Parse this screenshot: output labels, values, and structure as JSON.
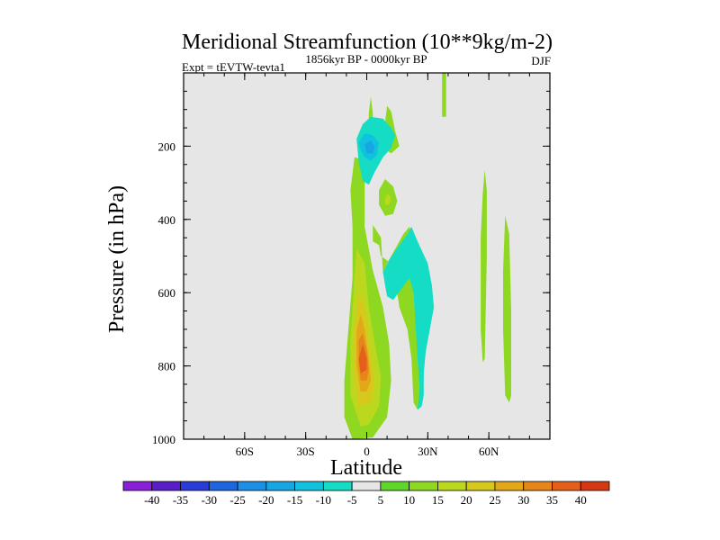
{
  "chart_data": {
    "type": "contour",
    "title": "Meridional Streamfunction (10**9kg/m-2)",
    "left_string": "Expt = tEVTW-tevta1",
    "center_string": "1856kyr BP - 0000kyr BP",
    "right_string": "DJF",
    "xlabel": "Latitude",
    "ylabel": "Pressure (in hPa)",
    "xlim": [
      -90,
      90
    ],
    "ylim": [
      0,
      1000
    ],
    "y_reversed": true,
    "x_ticks": [
      {
        "value": -60,
        "label": "60S"
      },
      {
        "value": -30,
        "label": "30S"
      },
      {
        "value": 0,
        "label": "0"
      },
      {
        "value": 30,
        "label": "30N"
      },
      {
        "value": 60,
        "label": "60N"
      }
    ],
    "y_ticks": [
      {
        "value": 200,
        "label": "200"
      },
      {
        "value": 400,
        "label": "400"
      },
      {
        "value": 600,
        "label": "600"
      },
      {
        "value": 800,
        "label": "800"
      },
      {
        "value": 1000,
        "label": "1000"
      }
    ],
    "background_color": "#e6e6e6",
    "colorbar": {
      "labels": [
        "-40",
        "-35",
        "-30",
        "-25",
        "-20",
        "-15",
        "-10",
        "-5",
        "5",
        "10",
        "15",
        "20",
        "25",
        "30",
        "35",
        "40"
      ],
      "colors": [
        "#8a1fd9",
        "#5a1ec8",
        "#2a3cd8",
        "#1d66e0",
        "#1c8fe6",
        "#16a6e2",
        "#10c2dd",
        "#15dcc4",
        "#e6e6e6",
        "#5fd62a",
        "#8ed821",
        "#bcd81e",
        "#d6c81c",
        "#e2a818",
        "#e6861a",
        "#e4601a",
        "#d63814"
      ]
    },
    "regions": [
      {
        "name": "positive-main-tongue",
        "level": "5",
        "color": "#8ed821",
        "points": [
          [
            -7,
            1000
          ],
          [
            -11,
            940
          ],
          [
            -11,
            840
          ],
          [
            -9,
            700
          ],
          [
            -7,
            560
          ],
          [
            -7,
            420
          ],
          [
            -8,
            320
          ],
          [
            -6,
            230
          ],
          [
            -3,
            235
          ],
          [
            -1,
            300
          ],
          [
            -1,
            420
          ],
          [
            3,
            540
          ],
          [
            8,
            640
          ],
          [
            11,
            740
          ],
          [
            12,
            840
          ],
          [
            10,
            940
          ],
          [
            3,
            995
          ]
        ]
      },
      {
        "name": "positive-tongue-10",
        "level": "10",
        "color": "#bcd81e",
        "points": [
          [
            -3,
            965
          ],
          [
            -8,
            880
          ],
          [
            -8,
            730
          ],
          [
            -6,
            560
          ],
          [
            -5,
            480
          ],
          [
            -1,
            520
          ],
          [
            1,
            640
          ],
          [
            4,
            740
          ],
          [
            7,
            830
          ],
          [
            6,
            910
          ],
          [
            1,
            960
          ]
        ]
      },
      {
        "name": "positive-tongue-15",
        "level": "15",
        "color": "#d6c81c",
        "points": [
          [
            -4,
            910
          ],
          [
            -6,
            820
          ],
          [
            -6,
            700
          ],
          [
            -4,
            600
          ],
          [
            -1,
            640
          ],
          [
            2,
            760
          ],
          [
            4,
            850
          ],
          [
            2,
            900
          ]
        ]
      },
      {
        "name": "positive-tongue-20",
        "level": "20",
        "color": "#e2a818",
        "points": [
          [
            -3,
            870
          ],
          [
            -5,
            800
          ],
          [
            -5,
            700
          ],
          [
            -3,
            660
          ],
          [
            -1,
            700
          ],
          [
            1,
            780
          ],
          [
            2,
            840
          ],
          [
            0,
            870
          ]
        ]
      },
      {
        "name": "positive-tongue-25",
        "level": "25",
        "color": "#e6861a",
        "points": [
          [
            -3,
            840
          ],
          [
            -4,
            790
          ],
          [
            -4,
            730
          ],
          [
            -2,
            710
          ],
          [
            0,
            760
          ],
          [
            1,
            810
          ],
          [
            0,
            840
          ]
        ]
      },
      {
        "name": "positive-core-30",
        "level": "30",
        "color": "#e4601a",
        "points": [
          [
            -3,
            820
          ],
          [
            -4,
            780
          ],
          [
            -2,
            740
          ],
          [
            0,
            780
          ],
          [
            0,
            810
          ]
        ]
      },
      {
        "name": "positive-upper-sliver",
        "level": "5",
        "color": "#8ed821",
        "points": [
          [
            1,
            110
          ],
          [
            2,
            65
          ],
          [
            3,
            110
          ],
          [
            3,
            140
          ],
          [
            1,
            140
          ]
        ]
      },
      {
        "name": "positive-upper-right-band",
        "level": "5",
        "color": "#8ed821",
        "points": [
          [
            7,
            200
          ],
          [
            9,
            135
          ],
          [
            10,
            90
          ],
          [
            12,
            105
          ],
          [
            14,
            160
          ],
          [
            16,
            200
          ],
          [
            12,
            220
          ]
        ]
      },
      {
        "name": "positive-mid-blob",
        "level": "5",
        "color": "#8ed821",
        "points": [
          [
            6,
            320
          ],
          [
            9,
            290
          ],
          [
            13,
            310
          ],
          [
            15,
            350
          ],
          [
            13,
            385
          ],
          [
            9,
            390
          ],
          [
            6,
            360
          ]
        ]
      },
      {
        "name": "positive-mid-core",
        "level": "10",
        "color": "#bcd81e",
        "points": [
          [
            9,
            345
          ],
          [
            10,
            330
          ],
          [
            12,
            340
          ],
          [
            11,
            360
          ],
          [
            9,
            360
          ]
        ]
      },
      {
        "name": "positive-center-mass",
        "level": "5",
        "color": "#8ed821",
        "points": [
          [
            3,
            415
          ],
          [
            7,
            450
          ],
          [
            8,
            550
          ],
          [
            10,
            520
          ],
          [
            14,
            480
          ],
          [
            18,
            440
          ],
          [
            21,
            420
          ],
          [
            23,
            460
          ],
          [
            20,
            520
          ],
          [
            23,
            600
          ],
          [
            24,
            680
          ],
          [
            26,
            760
          ],
          [
            28,
            820
          ],
          [
            27,
            890
          ],
          [
            25,
            920
          ],
          [
            23,
            900
          ],
          [
            22,
            780
          ],
          [
            20,
            700
          ],
          [
            16,
            640
          ],
          [
            14,
            560
          ],
          [
            12,
            520
          ],
          [
            7,
            500
          ],
          [
            6,
            470
          ],
          [
            3,
            460
          ]
        ]
      },
      {
        "name": "positive-top-thin-band",
        "level": "5",
        "color": "#8ed821",
        "points": [
          [
            37,
            0
          ],
          [
            39,
            0
          ],
          [
            39,
            120
          ],
          [
            37,
            120
          ]
        ]
      },
      {
        "name": "positive-high-lat-band",
        "level": "5",
        "color": "#8ed821",
        "points": [
          [
            58,
            265
          ],
          [
            59,
            320
          ],
          [
            59,
            500
          ],
          [
            58,
            780
          ],
          [
            57,
            790
          ],
          [
            56,
            700
          ],
          [
            56,
            450
          ],
          [
            57,
            330
          ]
        ]
      },
      {
        "name": "positive-polar-band",
        "level": "5",
        "color": "#8ed821",
        "points": [
          [
            68,
            390
          ],
          [
            70,
            440
          ],
          [
            71,
            650
          ],
          [
            71,
            880
          ],
          [
            70,
            900
          ],
          [
            68,
            880
          ],
          [
            67,
            700
          ],
          [
            67,
            540
          ]
        ]
      },
      {
        "name": "negative-upper-cell",
        "level": "-5",
        "color": "#15dcc4",
        "points": [
          [
            -5,
            180
          ],
          [
            -2,
            140
          ],
          [
            2,
            120
          ],
          [
            8,
            125
          ],
          [
            12,
            150
          ],
          [
            14,
            170
          ],
          [
            12,
            205
          ],
          [
            8,
            230
          ],
          [
            4,
            270
          ],
          [
            1,
            305
          ],
          [
            -2,
            295
          ],
          [
            -4,
            240
          ]
        ]
      },
      {
        "name": "negative-upper-core",
        "level": "-10",
        "color": "#10c2dd",
        "points": [
          [
            -4,
            190
          ],
          [
            -1,
            165
          ],
          [
            3,
            170
          ],
          [
            6,
            190
          ],
          [
            5,
            225
          ],
          [
            2,
            240
          ],
          [
            -1,
            230
          ],
          [
            -3,
            210
          ]
        ]
      },
      {
        "name": "negative-upper-inner",
        "level": "-15",
        "color": "#16a6e2",
        "points": [
          [
            -1,
            195
          ],
          [
            2,
            185
          ],
          [
            4,
            200
          ],
          [
            3,
            220
          ],
          [
            0,
            220
          ]
        ]
      },
      {
        "name": "negative-mid-cell",
        "level": "-5",
        "color": "#15dcc4",
        "points": [
          [
            8,
            545
          ],
          [
            11,
            510
          ],
          [
            16,
            470
          ],
          [
            20,
            440
          ],
          [
            22,
            420
          ],
          [
            25,
            460
          ],
          [
            30,
            520
          ],
          [
            32,
            580
          ],
          [
            33,
            640
          ],
          [
            31,
            700
          ],
          [
            29,
            760
          ],
          [
            28,
            820
          ],
          [
            28,
            880
          ],
          [
            27,
            910
          ],
          [
            25,
            920
          ],
          [
            26,
            860
          ],
          [
            25,
            780
          ],
          [
            24,
            690
          ],
          [
            23,
            600
          ],
          [
            21,
            560
          ],
          [
            17,
            590
          ],
          [
            13,
            620
          ],
          [
            10,
            610
          ],
          [
            9,
            580
          ]
        ]
      }
    ]
  }
}
